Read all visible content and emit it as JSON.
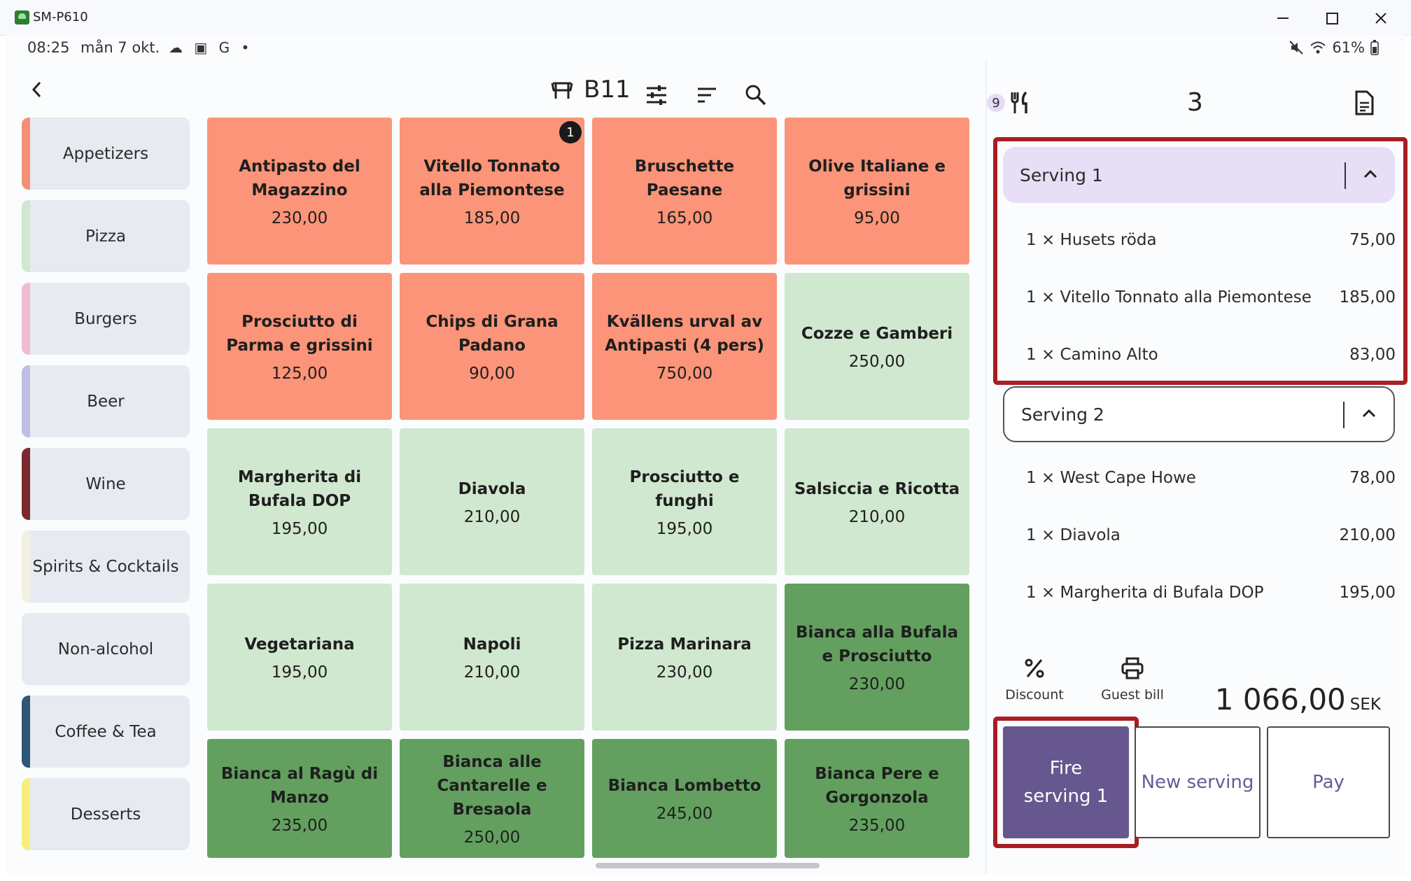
{
  "window": {
    "title": "SM-P610"
  },
  "status": {
    "time": "08:25",
    "date": "mån 7 okt.",
    "icons": "☁ ▣ G •",
    "battery": "61%"
  },
  "header": {
    "table_name": "B11",
    "guest_count": "9",
    "course": "3"
  },
  "categories": [
    {
      "label": "Appetizers",
      "color": "#f58f77"
    },
    {
      "label": "Pizza",
      "color": "#cfe8cf"
    },
    {
      "label": "Burgers",
      "color": "#f2bcd0"
    },
    {
      "label": "Beer",
      "color": "#bdbfe4"
    },
    {
      "label": "Wine",
      "color": "#7a2a2e"
    },
    {
      "label": "Spirits & Cocktails",
      "color": "#f3f0df"
    },
    {
      "label": "Non-alcohol",
      "color": "#e8eaf1"
    },
    {
      "label": "Coffee & Tea",
      "color": "#2e5675"
    },
    {
      "label": "Desserts",
      "color": "#f6ee7a"
    }
  ],
  "products": [
    {
      "name": "Antipasto del Magazzino",
      "price": "230,00",
      "color": "#fb9478"
    },
    {
      "name": "Vitello Tonnato alla Piemontese",
      "price": "185,00",
      "color": "#fb9478",
      "badge": "1"
    },
    {
      "name": "Bruschette Paesane",
      "price": "165,00",
      "color": "#fb9478"
    },
    {
      "name": "Olive Italiane e grissini",
      "price": "95,00",
      "color": "#fb9478"
    },
    {
      "name": "Prosciutto di Parma e grissini",
      "price": "125,00",
      "color": "#fb9478"
    },
    {
      "name": "Chips di Grana Padano",
      "price": "90,00",
      "color": "#fb9478"
    },
    {
      "name": "Kvällens urval av Antipasti (4 pers)",
      "price": "750,00",
      "color": "#fb9478"
    },
    {
      "name": "Cozze e Gamberi",
      "price": "250,00",
      "color": "#d0e8cf"
    },
    {
      "name": "Margherita di Bufala DOP",
      "price": "195,00",
      "color": "#d0e8cf"
    },
    {
      "name": "Diavola",
      "price": "210,00",
      "color": "#d0e8cf"
    },
    {
      "name": "Prosciutto e funghi",
      "price": "195,00",
      "color": "#d0e8cf"
    },
    {
      "name": "Salsiccia e Ricotta",
      "price": "210,00",
      "color": "#d0e8cf"
    },
    {
      "name": "Vegetariana",
      "price": "195,00",
      "color": "#d0e8cf"
    },
    {
      "name": "Napoli",
      "price": "210,00",
      "color": "#d0e8cf"
    },
    {
      "name": "Pizza Marinara",
      "price": "230,00",
      "color": "#d0e8cf"
    },
    {
      "name": "Bianca alla Bufala e Prosciutto",
      "price": "230,00",
      "color": "#63a05f"
    },
    {
      "name": "Bianca al Ragù di Manzo",
      "price": "235,00",
      "color": "#63a05f"
    },
    {
      "name": "Bianca alle Cantarelle e Bresaola",
      "price": "250,00",
      "color": "#63a05f"
    },
    {
      "name": "Bianca Lombetto",
      "price": "245,00",
      "color": "#63a05f"
    },
    {
      "name": "Bianca Pere e Gorgonzola",
      "price": "235,00",
      "color": "#63a05f"
    }
  ],
  "servings": [
    {
      "label": "Serving 1",
      "items": [
        {
          "qty": "1 ×",
          "name": "Husets röda",
          "price": "75,00"
        },
        {
          "qty": "1 ×",
          "name": "Vitello Tonnato alla Piemontese",
          "price": "185,00"
        },
        {
          "qty": "1 ×",
          "name": "Camino Alto",
          "price": "83,00"
        }
      ]
    },
    {
      "label": "Serving 2",
      "items": [
        {
          "qty": "1 ×",
          "name": "West Cape Howe",
          "price": "78,00"
        },
        {
          "qty": "1 ×",
          "name": "Diavola",
          "price": "210,00"
        },
        {
          "qty": "1 ×",
          "name": "Margherita di Bufala DOP",
          "price": "195,00"
        }
      ]
    }
  ],
  "footer": {
    "discount_label": "Discount",
    "guest_bill_label": "Guest bill",
    "total_amount": "1 066,00",
    "currency": "SEK",
    "fire_label": "Fire serving 1",
    "new_serving_label": "New serving",
    "pay_label": "Pay"
  },
  "colors": {
    "highlight": "#a81e22",
    "accent": "#66578f",
    "serving_active_bg": "#e7dff6"
  }
}
